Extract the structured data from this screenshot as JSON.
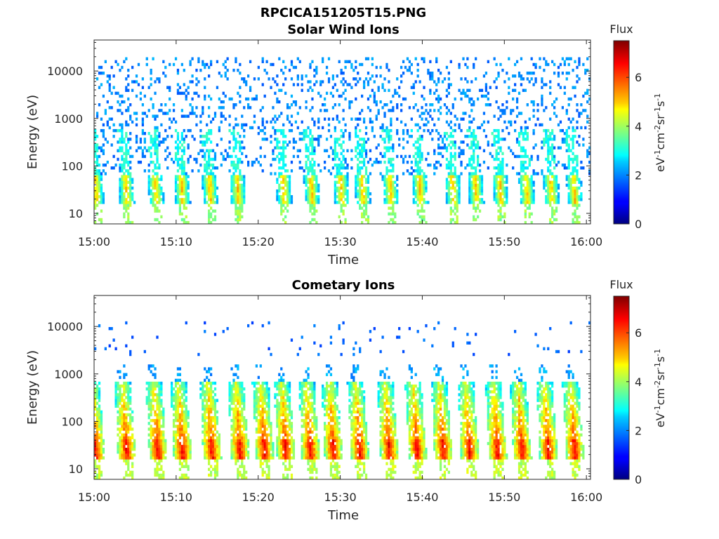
{
  "figure": {
    "suptitle": "RPCICA151205T15.PNG"
  },
  "chart_data": [
    {
      "type": "heatmap",
      "title": "Solar Wind Ions",
      "xlabel": "Time",
      "ylabel": "Energy (eV)",
      "x_tick_labels": [
        "15:00",
        "15:10",
        "15:20",
        "15:30",
        "15:40",
        "15:50",
        "16:00"
      ],
      "x_range_minutes": [
        0,
        60.5
      ],
      "y_scale": "log",
      "y_tick_values": [
        10,
        100,
        1000,
        10000
      ],
      "y_tick_labels": [
        "10",
        "100",
        "1000",
        "10000"
      ],
      "y_range": [
        6,
        45000
      ],
      "colorbar": {
        "label": "Flux",
        "units_main": "eV",
        "units_sup_1": "-1",
        "units_2": "cm",
        "units_sup_2": "-2",
        "units_3": "sr",
        "units_sup_3": "-1",
        "units_4": "s",
        "units_sup_4": "-1",
        "range": [
          0,
          7.5
        ],
        "ticks": [
          0,
          2,
          4,
          6
        ],
        "tick_labels": [
          "0",
          "2",
          "4",
          "6"
        ],
        "colormap": "jet"
      },
      "burst_times_minutes": [
        0.3,
        4,
        7.6,
        10.8,
        14.2,
        17.6,
        23.2,
        26.6,
        30.2,
        32.8,
        36.2,
        39.8,
        43.8,
        46.6,
        49.6,
        52.8,
        55.8,
        58.6
      ],
      "core_energy_range_eV": [
        15,
        60
      ],
      "core_flux": 4.8,
      "sparse_flux": 1.6,
      "sparse_energy_range_eV": [
        60,
        20000
      ]
    },
    {
      "type": "heatmap",
      "title": "Cometary Ions",
      "xlabel": "Time",
      "ylabel": "Energy (eV)",
      "x_tick_labels": [
        "15:00",
        "15:10",
        "15:20",
        "15:30",
        "15:40",
        "15:50",
        "16:00"
      ],
      "x_range_minutes": [
        0,
        60.5
      ],
      "y_scale": "log",
      "y_tick_values": [
        10,
        100,
        1000,
        10000
      ],
      "y_tick_labels": [
        "10",
        "100",
        "1000",
        "10000"
      ],
      "y_range": [
        6,
        45000
      ],
      "colorbar": {
        "label": "Flux",
        "units_main": "eV",
        "units_sup_1": "-1",
        "units_2": "cm",
        "units_sup_2": "-2",
        "units_3": "sr",
        "units_sup_3": "-1",
        "units_4": "s",
        "units_sup_4": "-1",
        "range": [
          0,
          7.5
        ],
        "ticks": [
          0,
          2,
          4,
          6
        ],
        "tick_labels": [
          "0",
          "2",
          "4",
          "6"
        ],
        "colormap": "jet"
      },
      "burst_times_minutes": [
        0.2,
        4,
        7.8,
        10.8,
        14.4,
        17.8,
        20.8,
        23.4,
        26.4,
        29.2,
        32.4,
        36.0,
        39.4,
        42.6,
        45.8,
        49.2,
        52.2,
        55.4,
        58.6
      ],
      "core_energy_range_eV": [
        15,
        45
      ],
      "core_flux": 6.2,
      "upper_energy_range_eV": [
        45,
        700
      ],
      "upper_flux": 4.0,
      "sparse_flux": 1.4,
      "sparse_energy_range_eV": [
        2500,
        12000
      ]
    }
  ]
}
